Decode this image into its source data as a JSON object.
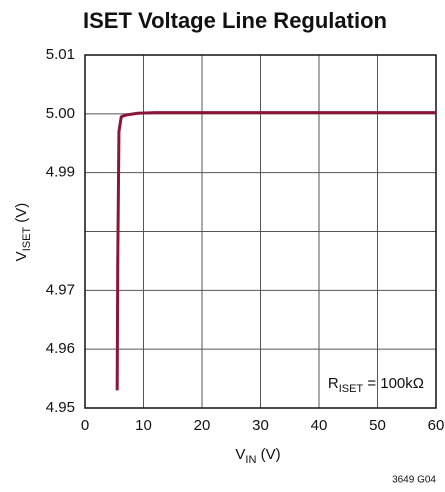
{
  "chart_data": {
    "type": "line",
    "title": "ISET Voltage Line Regulation",
    "x_label": {
      "main": "V",
      "sub": "IN",
      "rest": " (V)"
    },
    "y_label": {
      "main": "V",
      "sub": "ISET",
      "rest": " (V)"
    },
    "annotation": {
      "main": "R",
      "sub": "ISET",
      "rest": " = 100kΩ"
    },
    "footnote": "3649 G04",
    "xlim": [
      0,
      60
    ],
    "xticks": [
      0,
      10,
      20,
      30,
      40,
      50,
      60
    ],
    "ylim": [
      4.95,
      5.01
    ],
    "yticks": [
      4.95,
      4.96,
      4.97,
      4.99,
      {
        "value": 5,
        "label": "5.00"
      },
      5.01
    ],
    "ygrid": [
      4.95,
      4.96,
      4.97,
      4.98,
      4.99,
      5,
      5.01
    ],
    "grid": true,
    "series": [
      {
        "name": "VISET",
        "color": "#8b1538",
        "x": [
          5.5,
          5.6,
          5.8,
          6.2,
          7,
          9,
          12,
          20,
          60
        ],
        "values": [
          4.953,
          4.975,
          4.997,
          4.9995,
          4.9998,
          5.0001,
          5.0002,
          5.0002,
          5.0002
        ]
      }
    ]
  }
}
